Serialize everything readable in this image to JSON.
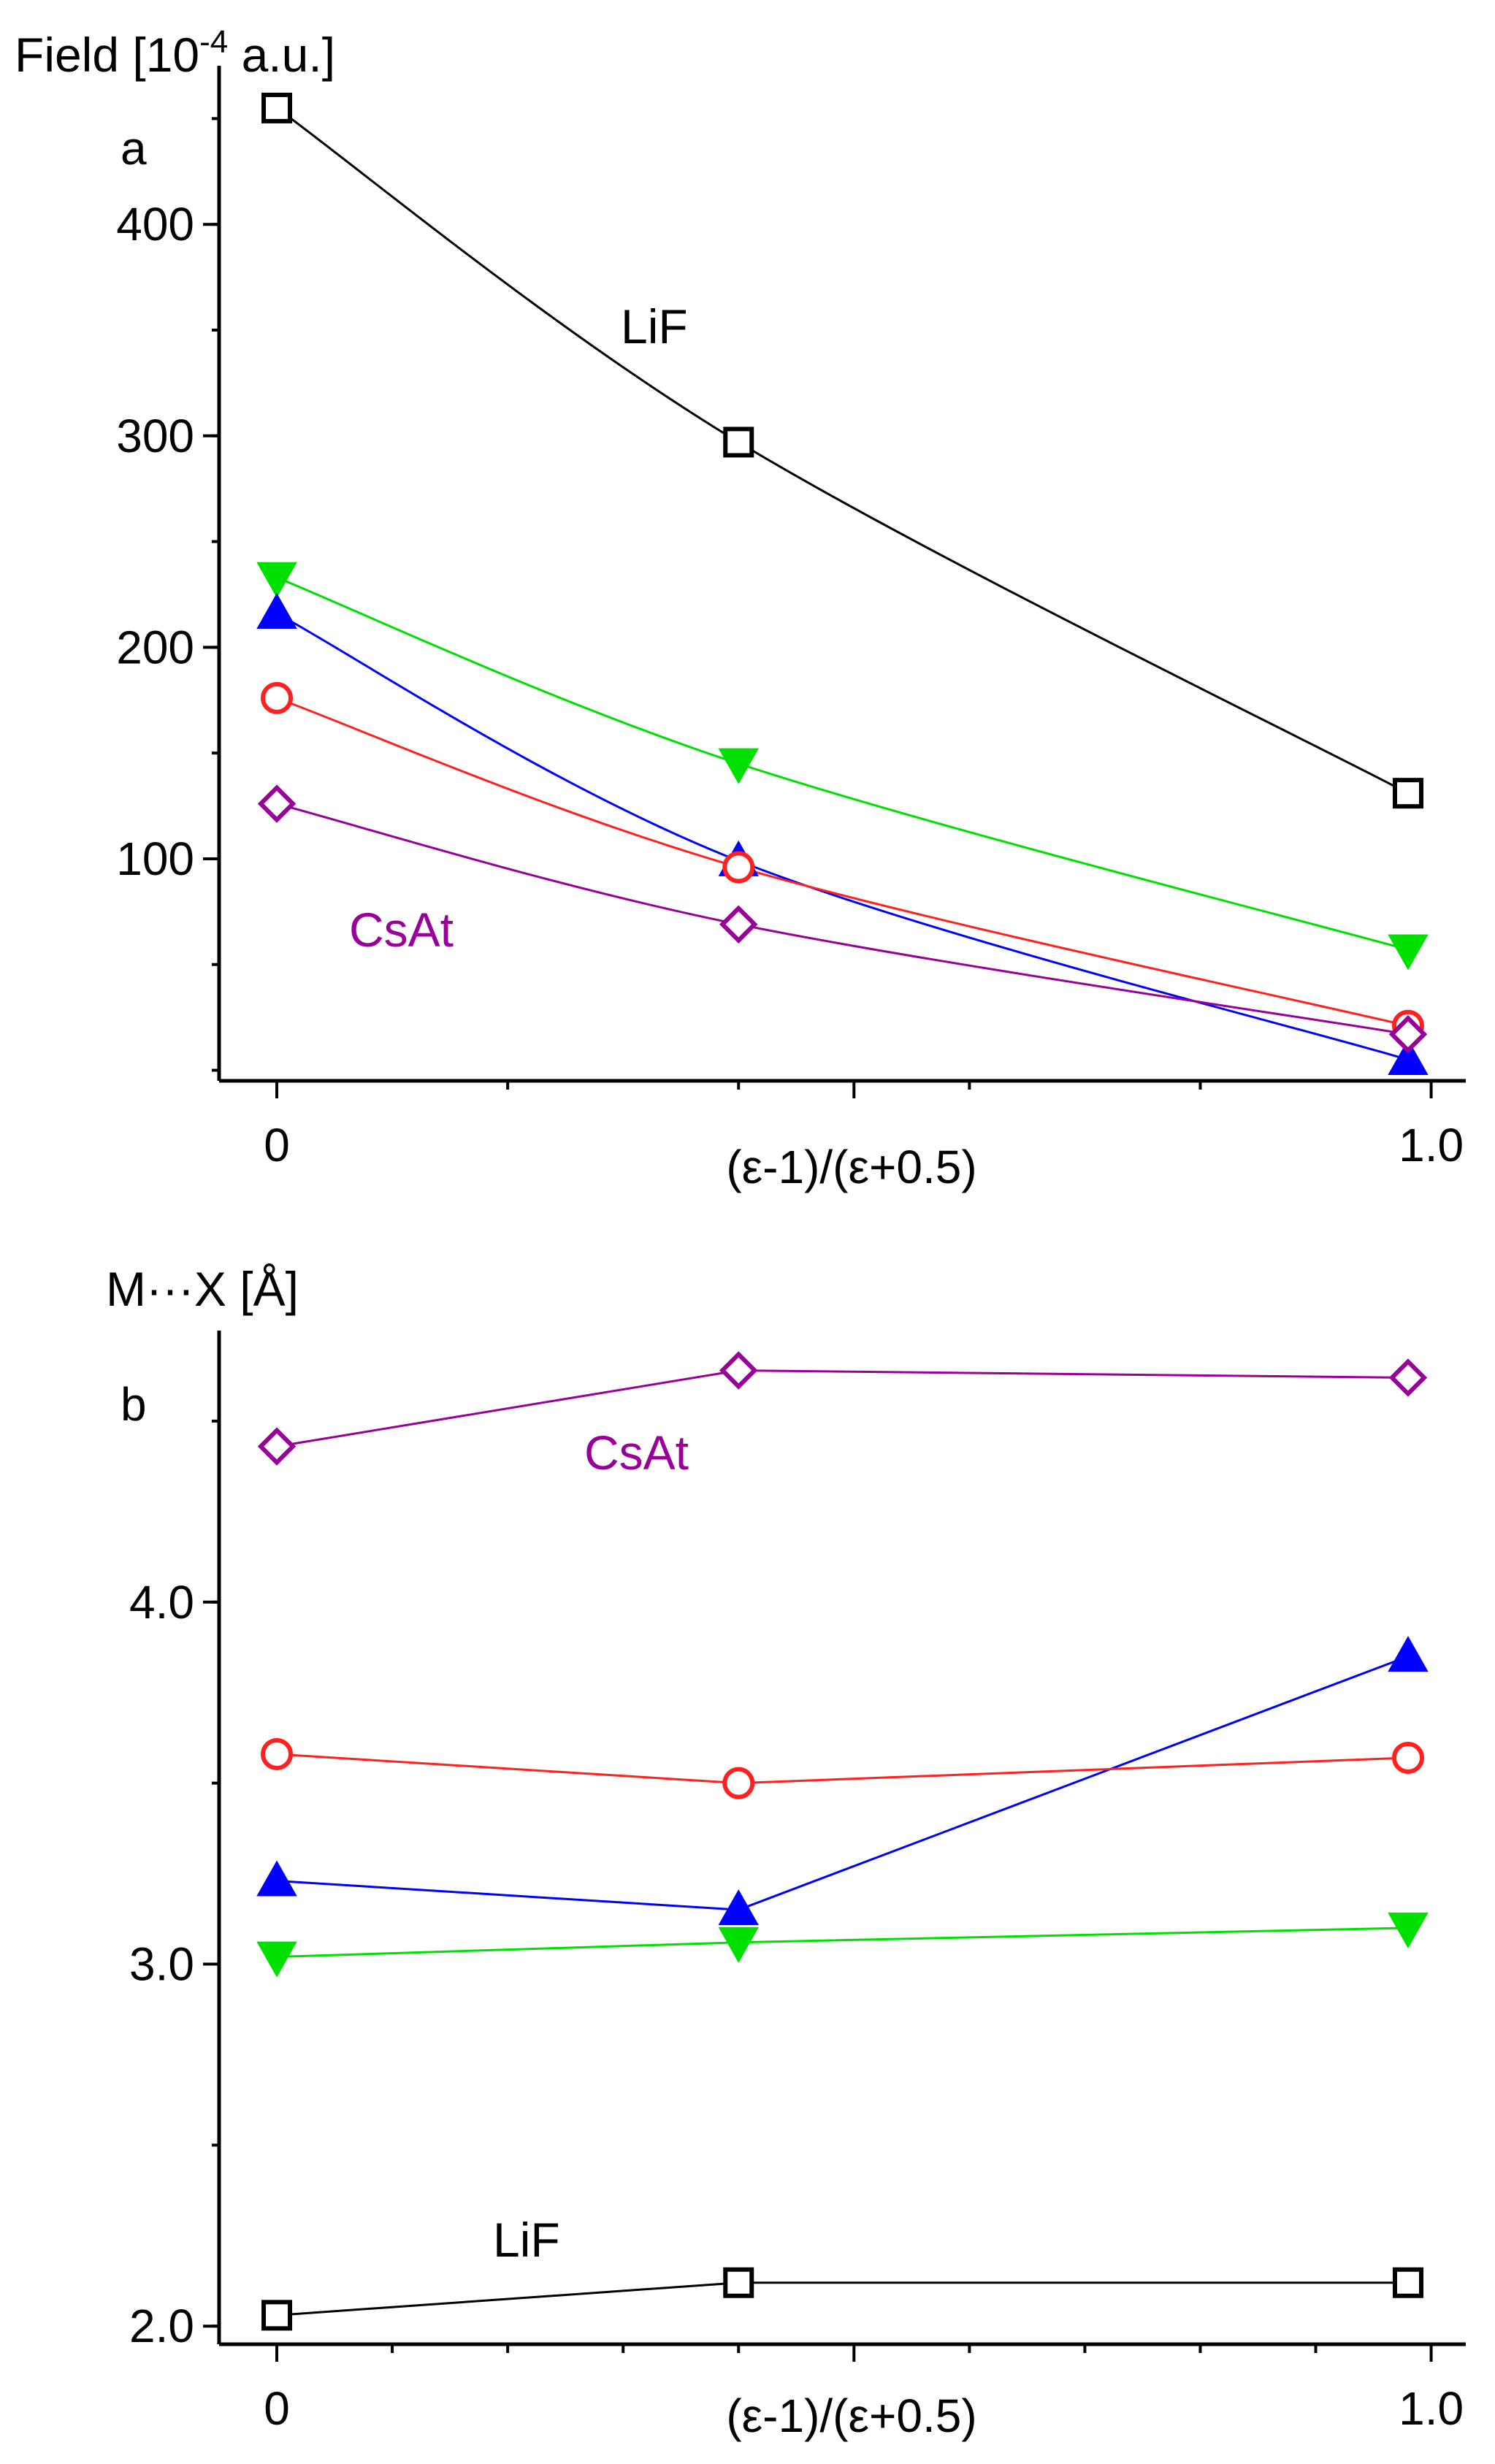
{
  "chart_data": [
    {
      "type": "line",
      "panel_label": "a",
      "ylabel": "Field [10",
      "ylabel_sup": "-4",
      "ylabel_tail": " a.u.]",
      "xlabel": "(ε-1)/(ε+0.5)",
      "x": [
        0,
        0.4,
        0.98
      ],
      "xlim": [
        -0.05,
        1.03
      ],
      "ylim": [
        -5,
        475
      ],
      "x_ticks": [
        {
          "value": 0,
          "label": "0"
        },
        {
          "value": 1.0,
          "label": "1.0"
        }
      ],
      "y_ticks": [
        {
          "value": 100,
          "label": "100"
        },
        {
          "value": 200,
          "label": "200"
        },
        {
          "value": 300,
          "label": "300"
        },
        {
          "value": 400,
          "label": "400"
        }
      ],
      "series": [
        {
          "marker": "square",
          "color": "#000000",
          "values": [
            455,
            297,
            131
          ]
        },
        {
          "marker": "triangle-down",
          "color": "#00e000",
          "values": [
            233,
            145,
            57
          ]
        },
        {
          "marker": "triangle-up",
          "color": "#0000ff",
          "values": [
            216,
            99,
            5
          ]
        },
        {
          "marker": "circle",
          "color": "#ff2020",
          "values": [
            176,
            96,
            21
          ]
        },
        {
          "marker": "diamond",
          "color": "#990099",
          "values": [
            126,
            69,
            17
          ]
        }
      ],
      "annotations": [
        {
          "text": "LiF",
          "color": "#000000"
        },
        {
          "text": "CsAt",
          "color": "#990099"
        }
      ]
    },
    {
      "type": "line",
      "panel_label": "b",
      "ylabel": "M···X [Å]",
      "xlabel": "(ε-1)/(ε+0.5)",
      "x": [
        0,
        0.4,
        0.98
      ],
      "xlim": [
        -0.05,
        1.03
      ],
      "ylim": [
        1.95,
        4.75
      ],
      "x_ticks": [
        {
          "value": 0,
          "label": "0"
        },
        {
          "value": 1.0,
          "label": "1.0"
        }
      ],
      "y_ticks": [
        {
          "value": 2.0,
          "label": "2.0"
        },
        {
          "value": 3.0,
          "label": "3.0"
        },
        {
          "value": 4.0,
          "label": "4.0"
        }
      ],
      "series": [
        {
          "marker": "diamond",
          "color": "#990099",
          "values": [
            4.43,
            4.64,
            4.62
          ]
        },
        {
          "marker": "triangle-up",
          "color": "#0000ff",
          "values": [
            3.23,
            3.15,
            3.85
          ]
        },
        {
          "marker": "circle",
          "color": "#ff2020",
          "values": [
            3.58,
            3.5,
            3.57
          ]
        },
        {
          "marker": "triangle-down",
          "color": "#00e000",
          "values": [
            3.02,
            3.06,
            3.1
          ]
        },
        {
          "marker": "square",
          "color": "#000000",
          "values": [
            2.03,
            2.12,
            2.12
          ]
        }
      ],
      "annotations": [
        {
          "text": "CsAt",
          "color": "#990099"
        },
        {
          "text": "LiF",
          "color": "#000000"
        }
      ]
    }
  ]
}
